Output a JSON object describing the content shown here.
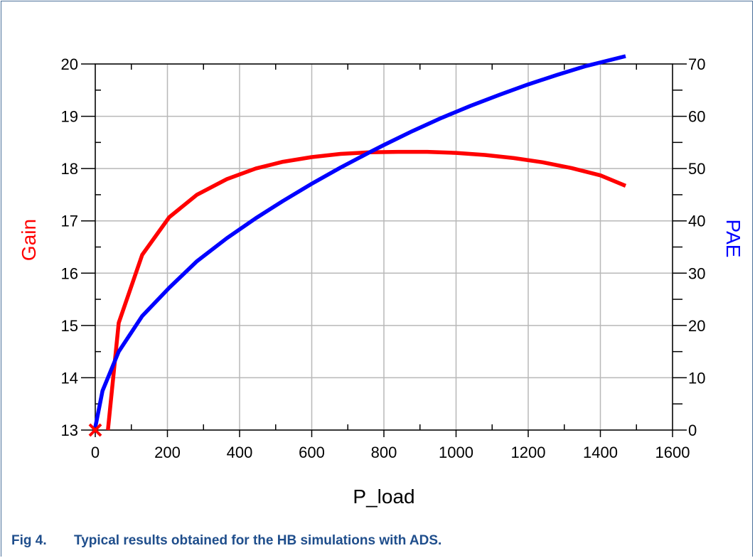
{
  "caption": {
    "number": "Fig 4.",
    "text": "Typical results obtained for the HB simulations with ADS."
  },
  "chart_data": {
    "type": "line",
    "xlabel": "P_load",
    "ylabel_left": "Gain",
    "ylabel_right": "PAE",
    "xlim": [
      0,
      1600
    ],
    "ylim_left": [
      13,
      20
    ],
    "ylim_right": [
      0,
      70
    ],
    "x_ticks": [
      "0",
      "200",
      "400",
      "600",
      "800",
      "1000",
      "1200",
      "1400",
      "1600"
    ],
    "y_left_ticks": [
      "13",
      "14",
      "15",
      "16",
      "17",
      "18",
      "19",
      "20"
    ],
    "y_right_ticks": [
      "0",
      "10",
      "20",
      "30",
      "40",
      "50",
      "60",
      "70"
    ],
    "grid": true,
    "series": [
      {
        "name": "Gain",
        "axis": "left",
        "color": "#ff0000",
        "x": [
          35,
          65,
          130,
          205,
          282,
          365,
          445,
          520,
          600,
          680,
          760,
          840,
          920,
          1000,
          1080,
          1160,
          1240,
          1320,
          1400,
          1470
        ],
        "values": [
          13.0,
          15.05,
          16.35,
          17.07,
          17.5,
          17.8,
          18.0,
          18.13,
          18.22,
          18.28,
          18.31,
          18.32,
          18.32,
          18.3,
          18.26,
          18.2,
          18.12,
          18.01,
          17.87,
          17.67
        ]
      },
      {
        "name": "PAE",
        "axis": "right",
        "color": "#0000ff",
        "x": [
          0,
          20,
          65,
          130,
          205,
          282,
          365,
          445,
          520,
          600,
          680,
          760,
          800,
          880,
          960,
          1040,
          1120,
          1200,
          1280,
          1360,
          1470
        ],
        "values": [
          0.5,
          7.5,
          15.0,
          21.8,
          27.2,
          32.3,
          36.7,
          40.5,
          43.8,
          47.1,
          50.2,
          53.1,
          54.5,
          57.2,
          59.7,
          62.0,
          64.1,
          66.1,
          67.9,
          69.6,
          71.5
        ]
      }
    ],
    "markers": [
      {
        "x": 0,
        "y": 13,
        "axis": "left",
        "symbol": "x",
        "color": "#ff0000"
      }
    ]
  }
}
